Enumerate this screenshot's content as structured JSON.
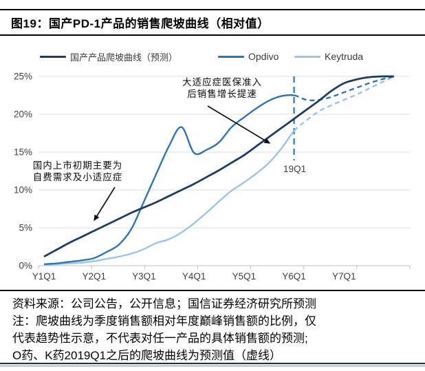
{
  "header": {
    "title": "图19：国产PD-1产品的销售爬坡曲线（相对值）"
  },
  "legend": {
    "items": [
      {
        "label": "国产产品爬坡曲线（预测）",
        "color": "#1f3b63"
      },
      {
        "label": "Opdivo",
        "color": "#2e74b5"
      },
      {
        "label": "Keytruda",
        "color": "#9dc3e6"
      }
    ]
  },
  "chart_data": {
    "type": "line",
    "title": "国产PD-1产品的销售爬坡曲线（相对值）",
    "x_axis": {
      "labels": [
        "Y1Q1",
        "Y2Q1",
        "Y3Q1",
        "Y4Q1",
        "Y5Q1",
        "Y6Q1",
        "Y7Q1"
      ],
      "quarters_total": 29,
      "label_every_n_quarters": 4
    },
    "y_axis": {
      "ticks": [
        0,
        5,
        10,
        15,
        20,
        25
      ],
      "unit": "%",
      "range": [
        0,
        25
      ]
    },
    "grid": "horizontal",
    "legend_position": "top",
    "series": [
      {
        "name": "国产产品爬坡曲线（预测）",
        "color": "#1f3b63",
        "width": 2.8,
        "line": "solid",
        "values": [
          1.2,
          2.1,
          3.0,
          3.8,
          4.6,
          5.4,
          6.2,
          7.0,
          7.7,
          8.4,
          9.2,
          10.0,
          10.8,
          11.7,
          12.6,
          13.6,
          14.6,
          15.8,
          17.0,
          18.2,
          19.4,
          20.6,
          21.8,
          23.1,
          24.1,
          24.6,
          24.9,
          25.0,
          25.0
        ]
      },
      {
        "name": "Opdivo",
        "color": "#2e74b5",
        "width": 2.4,
        "line": "solid",
        "dash_from_index": 20,
        "values": [
          0.2,
          0.3,
          0.5,
          0.7,
          1.0,
          1.8,
          2.8,
          4.9,
          8.5,
          12.2,
          15.8,
          18.3,
          14.9,
          15.3,
          16.3,
          18.3,
          19.6,
          20.8,
          21.8,
          22.4,
          22.5,
          21.9,
          21.9,
          22.3,
          22.9,
          23.5,
          24.1,
          24.6,
          25.0
        ]
      },
      {
        "name": "Keytruda",
        "color": "#9dc3e6",
        "width": 2.4,
        "line": "solid",
        "dash_from_index": 20,
        "values": [
          0.1,
          0.2,
          0.3,
          0.4,
          0.6,
          0.9,
          1.2,
          1.6,
          2.2,
          3.0,
          3.5,
          4.4,
          5.6,
          7.0,
          8.5,
          9.9,
          11.0,
          12.2,
          13.6,
          15.5,
          17.8,
          19.2,
          20.4,
          21.2,
          21.9,
          22.6,
          23.4,
          24.2,
          25.0
        ]
      }
    ],
    "marker_line": {
      "label": "19Q1",
      "at_index": 20,
      "color": "#2e74b5"
    },
    "annotations": [
      {
        "lines": [
          "大适应症医保准入",
          "后销售增长提速"
        ]
      },
      {
        "lines": [
          "国内上市初期主要为",
          "自费需求及小适应症"
        ]
      }
    ]
  },
  "footer": {
    "lines": [
      "资料来源：公司公告，公开信息；国信证券经济研究所预测",
      "注：爬坡曲线为季度销售额相对年度巅峰销售额的比例，仅",
      "代表趋势性示意，不代表对任一产品的具体销售额的预测;",
      "O药、K药2019Q1之后的爬坡曲线为预测值（虚线）"
    ]
  },
  "colors": {
    "grid": "#dcdcdc",
    "axis": "#bfbfbf",
    "tick_text": "#404040",
    "annotation_arrow": "#111111",
    "rule": "#000000"
  }
}
